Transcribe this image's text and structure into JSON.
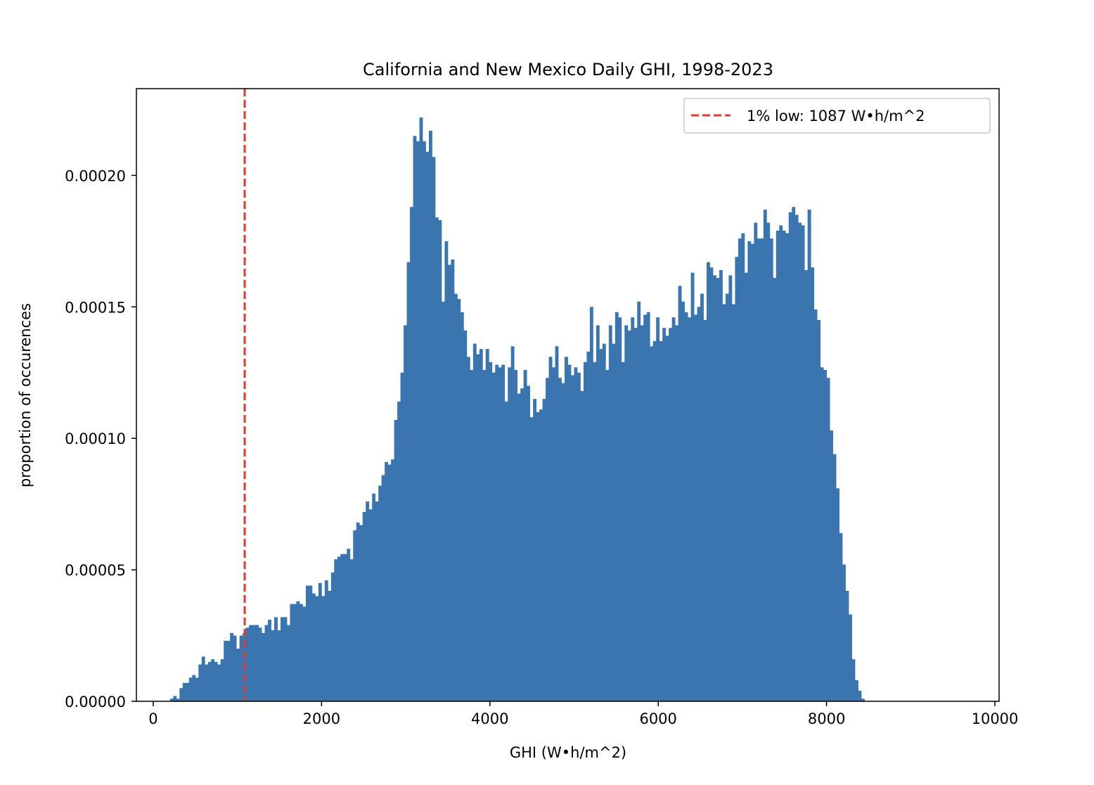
{
  "chart_data": {
    "type": "bar",
    "title": "California and New Mexico Daily GHI, 1998-2023",
    "xlabel": "GHI (W•h/m^2)",
    "ylabel": "proportion of occurences",
    "xlim": [
      -200,
      10050
    ],
    "ylim": [
      0,
      0.000233
    ],
    "x_ticks": [
      0,
      2000,
      4000,
      6000,
      8000,
      10000
    ],
    "x_tick_labels": [
      "0",
      "2000",
      "4000",
      "6000",
      "8000",
      "10000"
    ],
    "y_ticks": [
      0,
      5e-05,
      0.0001,
      0.00015,
      0.0002
    ],
    "y_tick_labels": [
      "0.00000",
      "0.00005",
      "0.00010",
      "0.00015",
      "0.00020"
    ],
    "bar_color": "#3b75af",
    "bin_start": 200,
    "bin_width": 37.5,
    "values": [
      1e-06,
      2e-06,
      1e-06,
      5e-06,
      7e-06,
      7e-06,
      9e-06,
      1e-05,
      9e-06,
      1.4e-05,
      1.7e-05,
      1.4e-05,
      1.5e-05,
      1.6e-05,
      1.5e-05,
      1.4e-05,
      1.6e-05,
      2.3e-05,
      2.3e-05,
      2.6e-05,
      2.5e-05,
      2e-05,
      2.5e-05,
      2.6e-05,
      2.8e-05,
      2.9e-05,
      2.9e-05,
      2.9e-05,
      2.8e-05,
      2.6e-05,
      2.9e-05,
      3.1e-05,
      2.7e-05,
      3.2e-05,
      2.7e-05,
      3.2e-05,
      3.2e-05,
      2.9e-05,
      3.7e-05,
      3.7e-05,
      3.8e-05,
      3.7e-05,
      3.6e-05,
      4.4e-05,
      4.4e-05,
      4.1e-05,
      4e-05,
      4.5e-05,
      4e-05,
      4.6e-05,
      4.2e-05,
      4.9e-05,
      5.4e-05,
      5.5e-05,
      5.6e-05,
      5.6e-05,
      5.8e-05,
      5.4e-05,
      6.5e-05,
      6.8e-05,
      6.7e-05,
      7.2e-05,
      7.6e-05,
      7.3e-05,
      7.9e-05,
      7.6e-05,
      8.2e-05,
      8.6e-05,
      9.1e-05,
      9e-05,
      9.2e-05,
      0.000107,
      0.000114,
      0.000125,
      0.000143,
      0.000167,
      0.000188,
      0.000215,
      0.000213,
      0.000222,
      0.000213,
      0.000209,
      0.000217,
      0.000207,
      0.000184,
      0.000183,
      0.000152,
      0.000175,
      0.000166,
      0.000168,
      0.000155,
      0.000153,
      0.000148,
      0.000141,
      0.000131,
      0.000126,
      0.000136,
      0.000132,
      0.000134,
      0.000126,
      0.000134,
      0.000129,
      0.000125,
      0.000128,
      0.000127,
      0.000128,
      0.000114,
      0.000127,
      0.000135,
      0.000126,
      0.000117,
      0.000119,
      0.000126,
      0.00012,
      0.000108,
      0.000115,
      0.00011,
      0.000111,
      0.000115,
      0.000123,
      0.000131,
      0.000127,
      0.000135,
      0.000123,
      0.000121,
      0.000131,
      0.000128,
      0.000124,
      0.000127,
      0.000125,
      0.000118,
      0.000129,
      0.000133,
      0.00015,
      0.000129,
      0.000143,
      0.000134,
      0.000136,
      0.000126,
      0.000143,
      0.000136,
      0.000148,
      0.000146,
      0.000129,
      0.000143,
      0.000141,
      0.000146,
      0.000142,
      0.000152,
      0.000143,
      0.000147,
      0.000148,
      0.000135,
      0.000137,
      0.000146,
      0.000137,
      0.000142,
      0.000139,
      0.000142,
      0.000146,
      0.000143,
      0.000158,
      0.000152,
      0.000148,
      0.000146,
      0.000163,
      0.000147,
      0.00015,
      0.000155,
      0.000145,
      0.000167,
      0.000165,
      0.000162,
      0.000161,
      0.000164,
      0.000151,
      0.000155,
      0.000162,
      0.000151,
      0.000169,
      0.000176,
      0.000178,
      0.000163,
      0.000175,
      0.000174,
      0.000182,
      0.000176,
      0.000176,
      0.000187,
      0.000182,
      0.000176,
      0.000161,
      0.000179,
      0.000181,
      0.000179,
      0.000178,
      0.000186,
      0.000188,
      0.000185,
      0.000182,
      0.000181,
      0.000164,
      0.000187,
      0.000165,
      0.000149,
      0.000145,
      0.000127,
      0.000126,
      0.000123,
      0.000103,
      9.4e-05,
      8.1e-05,
      6.4e-05,
      5.2e-05,
      4.2e-05,
      3.3e-05,
      1.6e-05,
      8e-06,
      4e-06,
      1e-06
    ],
    "reference_line": {
      "x": 1087,
      "color": "#e8372c",
      "style": "dashed",
      "label": "1% low: 1087 W•h/m^2"
    },
    "legend_position": "top-right"
  }
}
